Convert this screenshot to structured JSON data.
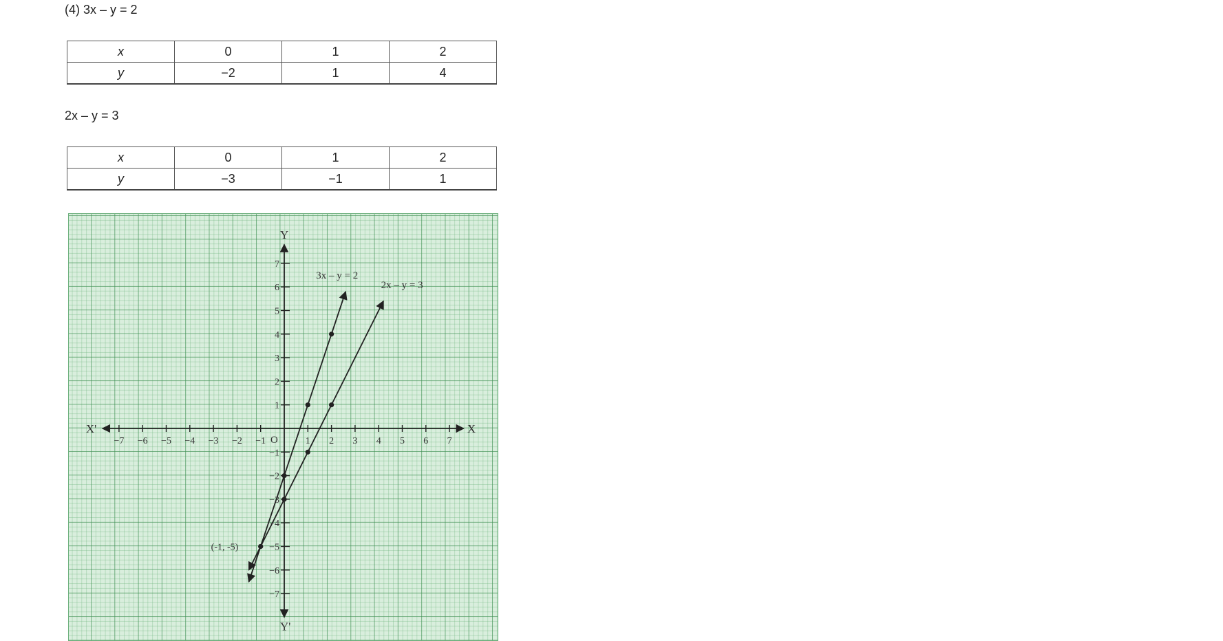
{
  "equation1": {
    "number": "(4)",
    "label": "3x – y = 2",
    "table": {
      "x_label": "x",
      "y_label": "y",
      "x": [
        "0",
        "1",
        "2"
      ],
      "y": [
        "−2",
        "1",
        "4"
      ]
    }
  },
  "equation2": {
    "label": "2x – y = 3",
    "table": {
      "x_label": "x",
      "y_label": "y",
      "x": [
        "0",
        "1",
        "2"
      ],
      "y": [
        "−3",
        "−1",
        "1"
      ]
    }
  },
  "graph": {
    "axis_labels": {
      "x_pos": "X",
      "x_neg": "X'",
      "y_pos": "Y",
      "y_neg": "Y'",
      "origin": "O"
    },
    "x_ticks": [
      "−7",
      "−6",
      "−5",
      "−4",
      "−3",
      "−2",
      "−1",
      "1",
      "2",
      "3",
      "4",
      "5",
      "6",
      "7"
    ],
    "y_ticks": [
      "7",
      "6",
      "5",
      "4",
      "3",
      "2",
      "1",
      "−1",
      "−2",
      "−3",
      "−4",
      "−5",
      "−6",
      "−7"
    ],
    "line_labels": [
      "3x – y = 2",
      "2x – y = 3"
    ],
    "intersection_label": "(-1, -5)"
  },
  "chart_data": {
    "type": "line",
    "xlim": [
      -7,
      7
    ],
    "ylim": [
      -7,
      7
    ],
    "grid": true,
    "series": [
      {
        "name": "3x – y = 2",
        "x": [
          -1,
          0,
          1,
          2
        ],
        "y": [
          -5,
          -2,
          1,
          4
        ]
      },
      {
        "name": "2x – y = 3",
        "x": [
          -1,
          0,
          1,
          2
        ],
        "y": [
          -5,
          -3,
          -1,
          1
        ]
      }
    ],
    "intersection": {
      "x": -1,
      "y": -5
    }
  }
}
